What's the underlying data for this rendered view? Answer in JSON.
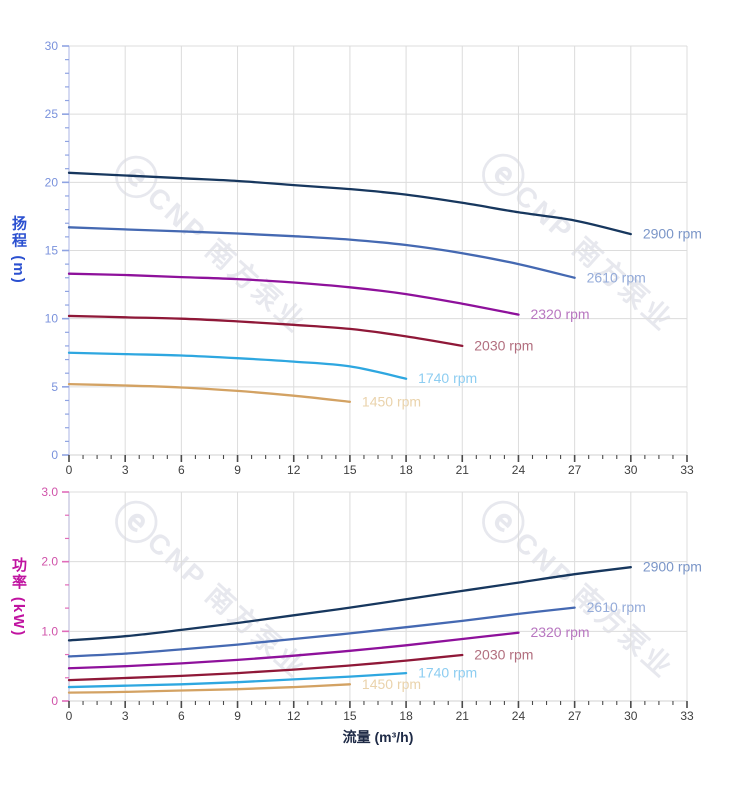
{
  "watermark": {
    "logo": "ⓔ",
    "text": "CNP 南方泵业"
  },
  "styles": {
    "grid_color": "#dcdcdc",
    "head_axis": {
      "title_color": "#2b50d0",
      "tick_text_color": "#7a92dc",
      "tick_color": "#8fa3e2",
      "spine_color": "#c3cbec"
    },
    "power_axis": {
      "title_color": "#c013a0",
      "tick_text_color": "#d053aa",
      "tick_color": "#e06cba",
      "spine_color": "#c9c9e2"
    },
    "x_axis": {
      "tick_text_color": "#3f3f3f",
      "tick_color": "#4a4a4a",
      "spine_color": "#d2d2d2",
      "title_color": "#1e2a46"
    },
    "watermark_color": "rgba(70,80,120,0.13)"
  },
  "chart_data": [
    {
      "id": "head",
      "type": "line",
      "title": "",
      "xlabel": "",
      "ylabel": "扬程 (m)",
      "xlim": [
        0,
        33
      ],
      "ylim": [
        0,
        30
      ],
      "x_major": 3,
      "x_minor_div": 4,
      "y_major": 5,
      "y_minor_div": 5,
      "x_ticks": [
        "0",
        "3",
        "6",
        "9",
        "12",
        "15",
        "18",
        "21",
        "24",
        "27",
        "30",
        "33"
      ],
      "y_ticks": [
        "0",
        "5",
        "10",
        "15",
        "20",
        "25",
        "30"
      ],
      "grid": true,
      "legend": "labels at right end of each curve",
      "series": [
        {
          "name": "2900 rpm",
          "color": "#17375e",
          "label_color": "#7b96c8",
          "x": [
            0,
            3,
            6,
            9,
            12,
            15,
            18,
            21,
            24,
            27,
            30
          ],
          "y": [
            20.7,
            20.5,
            20.3,
            20.1,
            19.8,
            19.5,
            19.1,
            18.5,
            17.8,
            17.2,
            16.2
          ]
        },
        {
          "name": "2610 rpm",
          "color": "#4569b2",
          "label_color": "#94abd9",
          "x": [
            0,
            3,
            6,
            9,
            12,
            15,
            18,
            21,
            24,
            27
          ],
          "y": [
            16.7,
            16.55,
            16.4,
            16.25,
            16.05,
            15.8,
            15.4,
            14.8,
            14.0,
            13.0
          ]
        },
        {
          "name": "2320 rpm",
          "color": "#8e119b",
          "label_color": "#b877c0",
          "x": [
            0,
            3,
            6,
            9,
            12,
            15,
            18,
            21,
            24
          ],
          "y": [
            13.3,
            13.2,
            13.05,
            12.9,
            12.65,
            12.3,
            11.8,
            11.1,
            10.3
          ]
        },
        {
          "name": "2030 rpm",
          "color": "#8f1838",
          "label_color": "#b26f7f",
          "x": [
            0,
            3,
            6,
            9,
            12,
            15,
            18,
            21
          ],
          "y": [
            10.2,
            10.1,
            10.0,
            9.8,
            9.55,
            9.25,
            8.7,
            8.0
          ]
        },
        {
          "name": "1740 rpm",
          "color": "#2ea7e0",
          "label_color": "#8dcdf1",
          "x": [
            0,
            3,
            6,
            9,
            12,
            15,
            18
          ],
          "y": [
            7.5,
            7.4,
            7.3,
            7.1,
            6.85,
            6.5,
            5.6
          ]
        },
        {
          "name": "1450 rpm",
          "color": "#d3a263",
          "label_color": "#ead3ac",
          "x": [
            0,
            3,
            6,
            9,
            12,
            15
          ],
          "y": [
            5.2,
            5.1,
            4.95,
            4.7,
            4.35,
            3.9
          ]
        }
      ]
    },
    {
      "id": "power",
      "type": "line",
      "title": "",
      "xlabel": "流量 (m³/h)",
      "ylabel": "功率 (kW)",
      "xlim": [
        0,
        33
      ],
      "ylim": [
        0,
        3
      ],
      "x_major": 3,
      "x_minor_div": 4,
      "y_major": 1,
      "y_minor_div": 3,
      "x_ticks": [
        "0",
        "3",
        "6",
        "9",
        "12",
        "15",
        "18",
        "21",
        "24",
        "27",
        "30",
        "33"
      ],
      "y_ticks": [
        "0",
        "1.0",
        "2.0",
        "3.0"
      ],
      "grid": true,
      "legend": "labels at right end of each curve",
      "series": [
        {
          "name": "2900 rpm",
          "color": "#17375e",
          "label_color": "#7b96c8",
          "x": [
            0,
            3,
            6,
            9,
            12,
            15,
            18,
            21,
            24,
            27,
            30
          ],
          "y": [
            0.87,
            0.93,
            1.02,
            1.12,
            1.23,
            1.34,
            1.46,
            1.58,
            1.7,
            1.82,
            1.92
          ]
        },
        {
          "name": "2610 rpm",
          "color": "#4569b2",
          "label_color": "#94abd9",
          "x": [
            0,
            3,
            6,
            9,
            12,
            15,
            18,
            21,
            24,
            27
          ],
          "y": [
            0.64,
            0.68,
            0.74,
            0.81,
            0.89,
            0.97,
            1.06,
            1.15,
            1.25,
            1.34
          ]
        },
        {
          "name": "2320 rpm",
          "color": "#8e119b",
          "label_color": "#b877c0",
          "x": [
            0,
            3,
            6,
            9,
            12,
            15,
            18,
            21,
            24
          ],
          "y": [
            0.47,
            0.5,
            0.54,
            0.59,
            0.65,
            0.72,
            0.8,
            0.89,
            0.98
          ]
        },
        {
          "name": "2030 rpm",
          "color": "#8f1838",
          "label_color": "#b26f7f",
          "x": [
            0,
            3,
            6,
            9,
            12,
            15,
            18,
            21
          ],
          "y": [
            0.3,
            0.33,
            0.36,
            0.4,
            0.45,
            0.51,
            0.58,
            0.66
          ]
        },
        {
          "name": "1740 rpm",
          "color": "#2ea7e0",
          "label_color": "#8dcdf1",
          "x": [
            0,
            3,
            6,
            9,
            12,
            15,
            18
          ],
          "y": [
            0.2,
            0.22,
            0.24,
            0.27,
            0.31,
            0.35,
            0.4
          ]
        },
        {
          "name": "1450 rpm",
          "color": "#d3a263",
          "label_color": "#ead3ac",
          "x": [
            0,
            3,
            6,
            9,
            12,
            15
          ],
          "y": [
            0.12,
            0.13,
            0.15,
            0.17,
            0.2,
            0.24
          ]
        }
      ]
    }
  ]
}
